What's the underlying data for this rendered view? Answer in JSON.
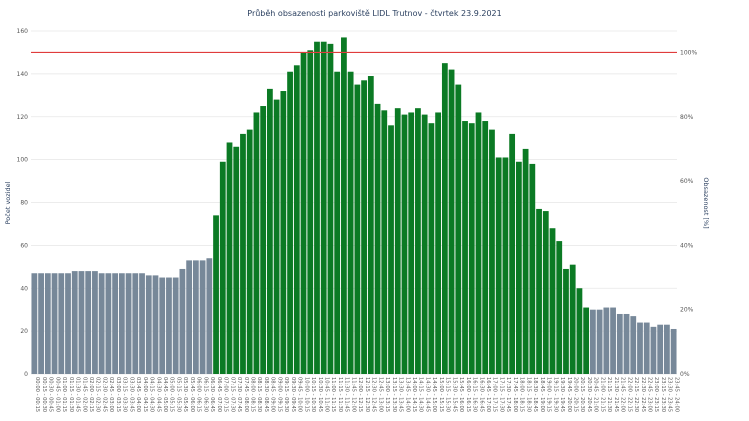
{
  "chart_data": {
    "type": "bar",
    "title": "Průběh obsazenosti parkoviště LIDL Trutnov - čtvrtek 23.9.2021",
    "ylabel": "Počet vozidel",
    "y2label": "Obsazenost [%]",
    "ylim": [
      0,
      160
    ],
    "yticks": [
      0,
      20,
      40,
      60,
      80,
      100,
      120,
      140,
      160
    ],
    "ytick_labels": [
      "0",
      "20",
      "40",
      "60",
      "80",
      "100",
      "120",
      "140",
      "160"
    ],
    "y2ticks": [
      "0%",
      "20%",
      "40%",
      "60%",
      "80%",
      "100%"
    ],
    "capacity_line": 150,
    "grid": true,
    "colors": {
      "off_hours": "#778899",
      "open_hours": "#0b7a24",
      "capacity": "#e03c3c",
      "title": "#2a3f5f"
    },
    "open_range": [
      27,
      82
    ],
    "categories": [
      "00:00 - 00:15",
      "00:15 - 00:30",
      "00:30 - 00:45",
      "00:45 - 01:00",
      "01:00 - 01:15",
      "01:15 - 01:30",
      "01:30 - 01:45",
      "01:45 - 02:00",
      "02:00 - 02:15",
      "02:15 - 02:30",
      "02:30 - 02:45",
      "02:45 - 03:00",
      "03:00 - 03:15",
      "03:15 - 03:30",
      "03:30 - 03:45",
      "03:45 - 04:00",
      "04:00 - 04:15",
      "04:15 - 04:30",
      "04:30 - 04:45",
      "04:45 - 05:00",
      "05:00 - 05:15",
      "05:15 - 05:30",
      "05:30 - 05:45",
      "05:45 - 06:00",
      "06:00 - 06:15",
      "06:15 - 06:30",
      "06:30 - 06:45",
      "06:45 - 07:00",
      "07:00 - 07:15",
      "07:15 - 07:30",
      "07:30 - 07:45",
      "07:45 - 08:00",
      "08:00 - 08:15",
      "08:15 - 08:30",
      "08:30 - 08:45",
      "08:45 - 09:00",
      "09:00 - 09:15",
      "09:15 - 09:30",
      "09:30 - 09:45",
      "09:45 - 10:00",
      "10:00 - 10:15",
      "10:15 - 10:30",
      "10:30 - 10:45",
      "10:45 - 11:00",
      "11:00 - 11:15",
      "11:15 - 11:30",
      "11:30 - 11:45",
      "11:45 - 12:00",
      "12:00 - 12:15",
      "12:15 - 12:30",
      "12:30 - 12:45",
      "12:45 - 13:00",
      "13:00 - 13:15",
      "13:15 - 13:30",
      "13:30 - 13:45",
      "13:45 - 14:00",
      "14:00 - 14:15",
      "14:15 - 14:30",
      "14:30 - 14:45",
      "14:45 - 15:00",
      "15:00 - 15:15",
      "15:15 - 15:30",
      "15:30 - 15:45",
      "15:45 - 16:00",
      "16:00 - 16:15",
      "16:15 - 16:30",
      "16:30 - 16:45",
      "16:45 - 17:00",
      "17:00 - 17:15",
      "17:15 - 17:30",
      "17:30 - 17:45",
      "17:45 - 18:00",
      "18:00 - 18:15",
      "18:15 - 18:30",
      "18:30 - 18:45",
      "18:45 - 19:00",
      "19:00 - 19:15",
      "19:15 - 19:30",
      "19:30 - 19:45",
      "19:45 - 20:00",
      "20:00 - 20:15",
      "20:15 - 20:30",
      "20:30 - 20:45",
      "20:45 - 21:00",
      "21:00 - 21:15",
      "21:15 - 21:30",
      "21:30 - 21:45",
      "21:45 - 22:00",
      "22:00 - 22:15",
      "22:15 - 22:30",
      "22:30 - 22:45",
      "22:45 - 23:00",
      "23:00 - 23:15",
      "23:15 - 23:30",
      "23:30 - 23:45",
      "23:45 - 24:00"
    ],
    "values": [
      47,
      47,
      47,
      47,
      47,
      47,
      48,
      48,
      48,
      48,
      47,
      47,
      47,
      47,
      47,
      47,
      47,
      46,
      46,
      45,
      45,
      45,
      49,
      53,
      53,
      53,
      54,
      74,
      99,
      108,
      106,
      112,
      114,
      122,
      125,
      133,
      128,
      132,
      141,
      144,
      150,
      151,
      155,
      155,
      154,
      141,
      157,
      141,
      135,
      137,
      139,
      126,
      123,
      116,
      124,
      121,
      122,
      124,
      121,
      117,
      122,
      145,
      142,
      135,
      118,
      117,
      122,
      118,
      114,
      101,
      101,
      112,
      99,
      105,
      98,
      77,
      76,
      68,
      62,
      49,
      51,
      40,
      31,
      30,
      30,
      31,
      31,
      28,
      28,
      27,
      24,
      24,
      22,
      23,
      23,
      21
    ]
  }
}
